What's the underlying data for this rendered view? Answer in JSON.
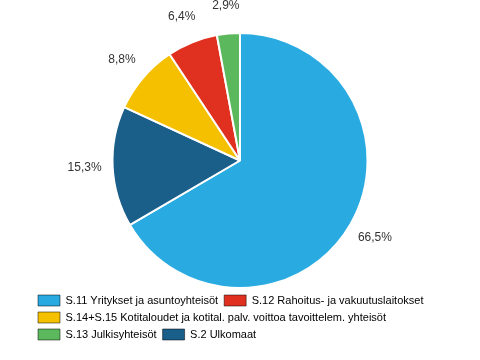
{
  "chart_data": {
    "type": "pie",
    "values": [
      66.5,
      15.3,
      8.8,
      6.4,
      2.9
    ],
    "value_labels": [
      "66,5%",
      "15,3%",
      "8,8%",
      "6,4%",
      "2,9%"
    ],
    "colors": [
      "#29ABE2",
      "#1A5E8A",
      "#F5C000",
      "#E03020",
      "#5CB85C"
    ],
    "data_labels": true,
    "legend": "bottom",
    "series": [
      {
        "name": "S.11 Yritykset ja asuntoyhteisöt",
        "color": "#29ABE2"
      },
      {
        "name": "S.12 Rahoitus- ja vakuutuslaitokset",
        "color": "#E03020"
      },
      {
        "name": "S.14+S.15 Kotitaloudet ja kotital. palv. voittoa tavoittelem. yhteisöt",
        "color": "#F5C000"
      },
      {
        "name": "S.13 Julkisyhteisöt",
        "color": "#5CB85C"
      },
      {
        "name": "S.2 Ulkomaat",
        "color": "#1A5E8A"
      }
    ]
  }
}
